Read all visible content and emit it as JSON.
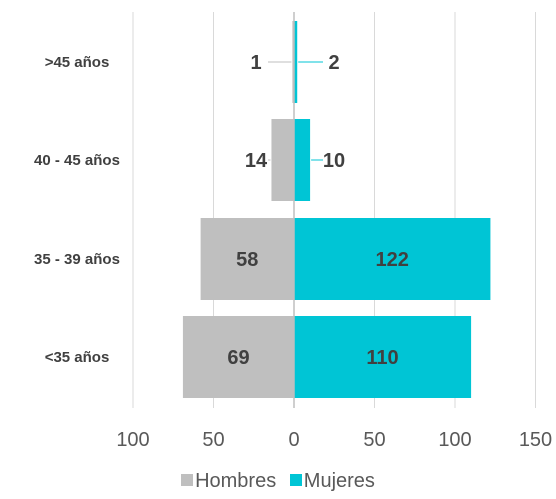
{
  "chart_data": {
    "type": "bar",
    "orientation": "horizontal-diverging",
    "categories": [
      ">45 años",
      "40 - 45 años",
      "35 - 39 años",
      "<35 años"
    ],
    "series": [
      {
        "name": "Hombres",
        "values": [
          1,
          14,
          58,
          69
        ],
        "color": "#bfbfbf",
        "direction": "left"
      },
      {
        "name": "Mujeres",
        "values": [
          2,
          10,
          122,
          110
        ],
        "color": "#00c5d5",
        "direction": "right"
      }
    ],
    "xticks": [
      "100",
      "50",
      "0",
      "50",
      "100",
      "150"
    ],
    "xlim": [
      -100,
      150
    ],
    "grid": true,
    "legend_position": "bottom"
  },
  "colors": {
    "gridline": "#d9d9d9",
    "axis": "#bfbfbf",
    "leader_line_hombres": "#bfbfbf",
    "leader_line_mujeres": "#00c5d5"
  }
}
